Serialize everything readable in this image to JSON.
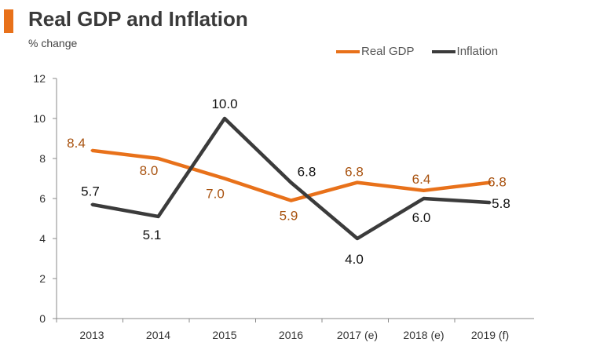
{
  "chart_data": {
    "type": "line",
    "title": "Real GDP and Inflation",
    "subtitle": "% change",
    "xlabel": "",
    "ylabel": "% change",
    "categories": [
      "2013",
      "2014",
      "2015",
      "2016",
      "2017 (e)",
      "2018 (e)",
      "2019 (f)"
    ],
    "ylim": [
      0,
      12
    ],
    "yticks": [
      0,
      2,
      4,
      6,
      8,
      10,
      12
    ],
    "grid": false,
    "legend_position": "top-right",
    "series": [
      {
        "name": "Real GDP",
        "color": "#e8711a",
        "label_color": "#a8520f",
        "values": [
          8.4,
          8.0,
          7.0,
          5.9,
          6.8,
          6.4,
          6.8
        ],
        "labels": [
          "8.4",
          "8.0",
          "7.0",
          "5.9",
          "6.8",
          "6.4",
          "6.8"
        ]
      },
      {
        "name": "Inflation",
        "color": "#3b3b3b",
        "label_color": "#111111",
        "values": [
          5.7,
          5.1,
          10.0,
          6.8,
          4.0,
          6.0,
          5.8
        ],
        "labels": [
          "5.7",
          "5.1",
          "10.0",
          "6.8",
          "4.0",
          "6.0",
          "5.8"
        ]
      }
    ]
  },
  "colors": {
    "accent": "#e8711a",
    "axis": "#888888"
  }
}
